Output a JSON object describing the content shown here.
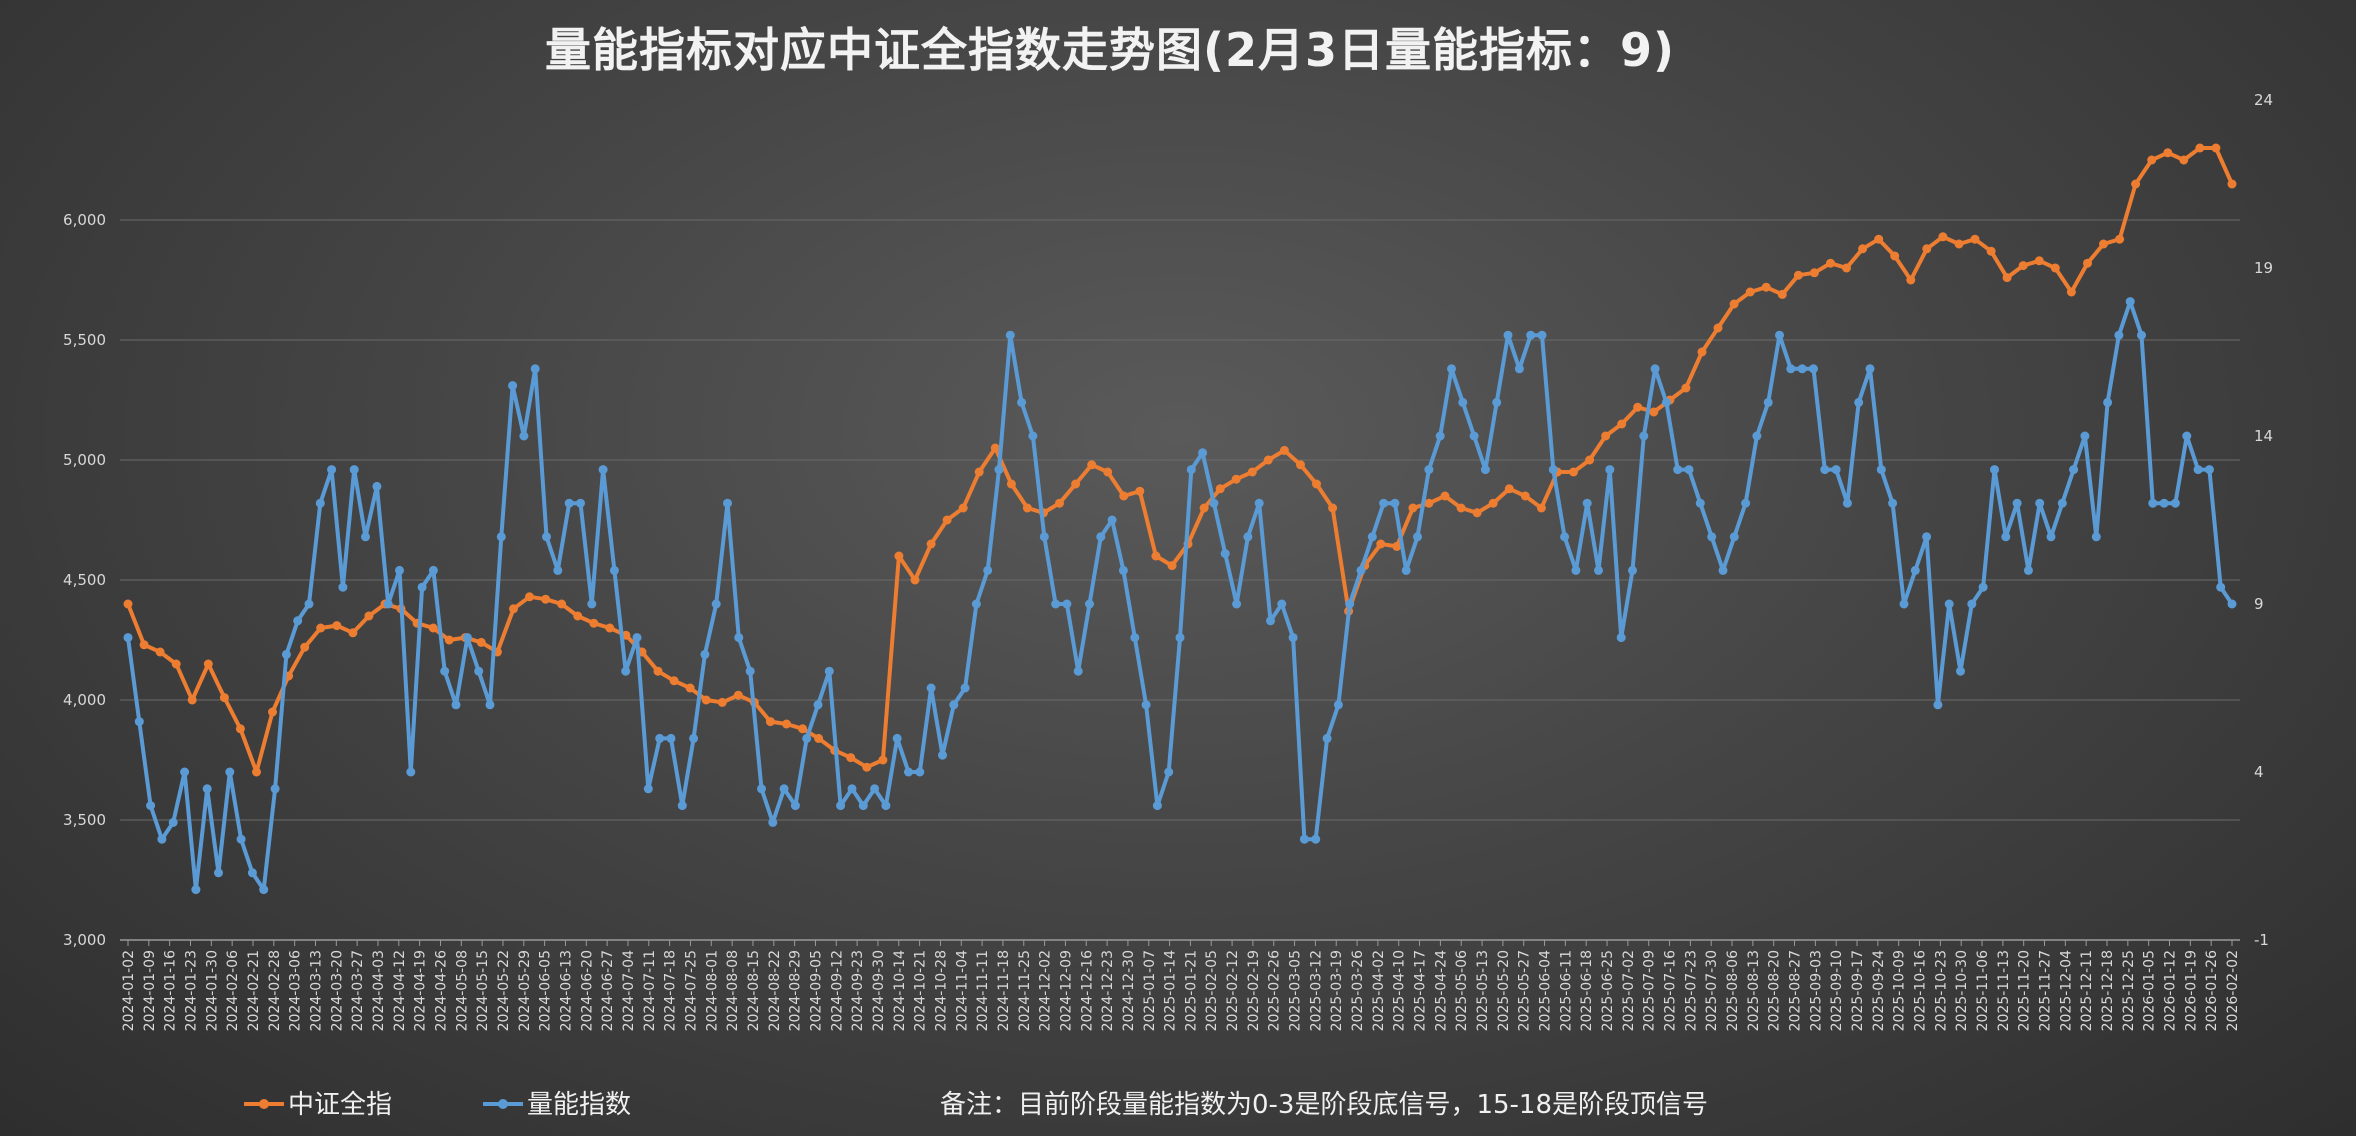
{
  "chart_data": {
    "type": "line",
    "title": "量能指标对应中证全指数走势图(2月3日量能指标：9)",
    "note": "备注：目前阶段量能指数为0-3是阶段底信号，15-18是阶段顶信号",
    "legend_position": "bottom-left",
    "grid": true,
    "y_left": {
      "range": [
        3000,
        6500
      ],
      "ticks": [
        "3,000",
        "3,500",
        "4,000",
        "4,500",
        "5,000",
        "5,500",
        "6,000"
      ]
    },
    "y_right": {
      "range": [
        -1,
        24
      ],
      "ticks": [
        "-1",
        "4",
        "9",
        "14",
        "19",
        "24"
      ]
    },
    "x_tick_labels": [
      "2024-01-02",
      "2024-01-09",
      "2024-01-16",
      "2024-01-23",
      "2024-01-30",
      "2024-02-06",
      "2024-02-21",
      "2024-02-28",
      "2024-03-06",
      "2024-03-13",
      "2024-03-20",
      "2024-03-27",
      "2024-04-03",
      "2024-04-12",
      "2024-04-19",
      "2024-04-26",
      "2024-05-08",
      "2024-05-15",
      "2024-05-22",
      "2024-05-29",
      "2024-06-05",
      "2024-06-13",
      "2024-06-20",
      "2024-06-27",
      "2024-07-04",
      "2024-07-11",
      "2024-07-18",
      "2024-07-25",
      "2024-08-01",
      "2024-08-08",
      "2024-08-15",
      "2024-08-22",
      "2024-08-29",
      "2024-09-05",
      "2024-09-12",
      "2024-09-23",
      "2024-09-30",
      "2024-10-14",
      "2024-10-21",
      "2024-10-28",
      "2024-11-04",
      "2024-11-11",
      "2024-11-18",
      "2024-11-25",
      "2024-12-02",
      "2024-12-09",
      "2024-12-16",
      "2024-12-23",
      "2024-12-30",
      "2025-01-07",
      "2025-01-14",
      "2025-01-21",
      "2025-02-05",
      "2025-02-12",
      "2025-02-19",
      "2025-02-26",
      "2025-03-05",
      "2025-03-12",
      "2025-03-19",
      "2025-03-26",
      "2025-04-02",
      "2025-04-10",
      "2025-04-17",
      "2025-04-24",
      "2025-05-06",
      "2025-05-13",
      "2025-05-20",
      "2025-05-27",
      "2025-06-04",
      "2025-06-11",
      "2025-06-18",
      "2025-06-25",
      "2025-07-02",
      "2025-07-09",
      "2025-07-16",
      "2025-07-23",
      "2025-07-30",
      "2025-08-06",
      "2025-08-13",
      "2025-08-20",
      "2025-08-27",
      "2025-09-03",
      "2025-09-10",
      "2025-09-17",
      "2025-09-24",
      "2025-10-09",
      "2025-10-16",
      "2025-10-23",
      "2025-10-30",
      "2025-11-06",
      "2025-11-13",
      "2025-11-20",
      "2025-11-27",
      "2025-12-04",
      "2025-12-11",
      "2025-12-18",
      "2025-12-25",
      "2026-01-05",
      "2026-01-12",
      "2026-01-19",
      "2026-01-26",
      "2026-02-02"
    ],
    "series": [
      {
        "name": "中证全指",
        "axis": "left",
        "color": "#ED7D31",
        "values": [
          4400,
          4230,
          4200,
          4150,
          4000,
          4150,
          4010,
          3880,
          3700,
          3950,
          4100,
          4220,
          4300,
          4310,
          4280,
          4350,
          4400,
          4380,
          4320,
          4300,
          4250,
          4260,
          4240,
          4200,
          4380,
          4430,
          4420,
          4400,
          4350,
          4320,
          4300,
          4270,
          4200,
          4120,
          4080,
          4050,
          4000,
          3990,
          4020,
          3990,
          3910,
          3900,
          3880,
          3840,
          3790,
          3760,
          3720,
          3750,
          4600,
          4500,
          4650,
          4750,
          4800,
          4950,
          5050,
          4900,
          4800,
          4780,
          4820,
          4900,
          4980,
          4950,
          4850,
          4870,
          4600,
          4560,
          4650,
          4800,
          4880,
          4920,
          4950,
          5000,
          5040,
          4980,
          4900,
          4800,
          4370,
          4560,
          4650,
          4640,
          4800,
          4820,
          4850,
          4800,
          4780,
          4820,
          4880,
          4850,
          4800,
          4950,
          4950,
          5000,
          5100,
          5150,
          5220,
          5200,
          5250,
          5300,
          5450,
          5550,
          5650,
          5700,
          5720,
          5690,
          5770,
          5780,
          5820,
          5800,
          5880,
          5920,
          5850,
          5750,
          5880,
          5930,
          5900,
          5920,
          5870,
          5760,
          5810,
          5830,
          5800,
          5700,
          5820,
          5900,
          5920,
          6150,
          6250,
          6280,
          6250,
          6300,
          6300,
          6150
        ]
      },
      {
        "name": "量能指数",
        "axis": "right",
        "color": "#5B9BD5",
        "values": [
          8,
          5.5,
          3,
          2,
          2.5,
          4,
          0.5,
          3.5,
          1,
          4,
          2,
          1,
          0.5,
          3.5,
          7.5,
          8.5,
          9,
          12,
          13,
          9.5,
          13,
          11,
          12.5,
          9,
          10,
          4,
          9.5,
          10,
          7,
          6,
          8,
          7,
          6,
          11,
          15.5,
          14,
          16,
          11,
          10,
          12,
          12,
          9,
          13,
          10,
          7,
          8,
          3.5,
          5,
          5,
          3,
          5,
          7.5,
          9,
          12,
          8,
          7,
          3.5,
          2.5,
          3.5,
          3,
          5,
          6,
          7,
          3,
          3.5,
          3,
          3.5,
          3,
          5,
          4,
          4,
          6.5,
          4.5,
          6,
          6.5,
          9,
          10,
          13,
          17,
          15,
          14,
          11,
          9,
          9,
          7,
          9,
          11,
          11.5,
          10,
          8,
          6,
          3,
          4,
          8,
          13,
          13.5,
          12,
          10.5,
          9,
          11,
          12,
          8.5,
          9,
          8,
          2,
          2,
          5,
          6,
          9,
          10,
          11,
          12,
          12,
          10,
          11,
          13,
          14,
          16,
          15,
          14,
          13,
          15,
          17,
          16,
          17,
          17,
          13,
          11,
          10,
          12,
          10,
          13,
          8,
          10,
          14,
          16,
          15,
          13,
          13,
          12,
          11,
          10,
          11,
          12,
          14,
          15,
          17,
          16,
          16,
          16,
          13,
          13,
          12,
          15,
          16,
          13,
          12,
          9,
          10,
          11,
          6,
          9,
          7,
          9,
          9.5,
          13,
          11,
          12,
          10,
          12,
          11,
          12,
          13,
          14,
          11,
          15,
          17,
          18,
          17,
          12,
          12,
          12,
          14,
          13,
          13,
          9.5,
          9
        ]
      }
    ]
  }
}
